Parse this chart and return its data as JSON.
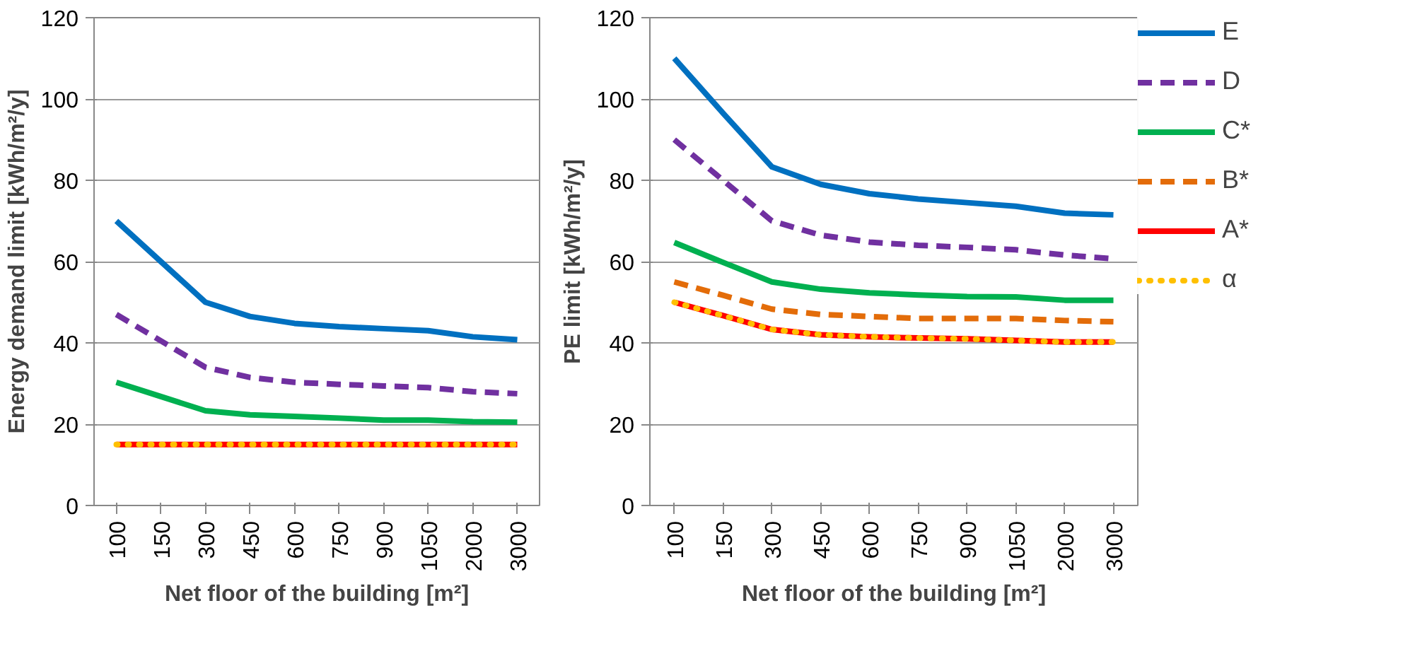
{
  "chart_data": [
    {
      "type": "line",
      "xlabel": "Net floor of the building [m²]",
      "ylabel": "Energy demand limit [kWh/m²/y]",
      "categories": [
        "100",
        "150",
        "300",
        "450",
        "600",
        "750",
        "900",
        "1050",
        "2000",
        "3000"
      ],
      "ylim": [
        0,
        120
      ],
      "yticks": [
        0,
        20,
        40,
        60,
        80,
        100,
        120
      ],
      "grid": "y",
      "legend": false,
      "series": [
        {
          "color": "#0070c0",
          "line_style": "solid",
          "values": [
            70,
            60,
            50,
            46.5,
            44.8,
            44,
            43.5,
            43,
            41.5,
            40.8
          ]
        },
        {
          "color": "#7030a0",
          "line_style": "dashed",
          "values": [
            47,
            40.5,
            34,
            31.5,
            30.3,
            29.8,
            29.4,
            29,
            28,
            27.5
          ]
        },
        {
          "color": "#00b050",
          "line_style": "solid",
          "values": [
            30.3,
            26.8,
            23.3,
            22.3,
            21.9,
            21.5,
            21,
            21,
            20.6,
            20.5
          ]
        },
        {
          "color": "#e36c09",
          "line_style": "dashed",
          "values": [
            null,
            null,
            null,
            null,
            null,
            null,
            null,
            null,
            null,
            null
          ]
        },
        {
          "color": "#ff0000",
          "line_style": "solid",
          "values": [
            15,
            15,
            15,
            15,
            15,
            15,
            15,
            15,
            15,
            15
          ]
        },
        {
          "color": "#ffc000",
          "line_style": "dotted",
          "values": [
            15,
            15,
            15,
            15,
            15,
            15,
            15,
            15,
            15,
            15
          ]
        }
      ]
    },
    {
      "type": "line",
      "xlabel": "Net floor of the building [m²]",
      "ylabel": "PE limit [kWh/m²/y]",
      "categories": [
        "100",
        "150",
        "300",
        "450",
        "600",
        "750",
        "900",
        "1050",
        "2000",
        "3000"
      ],
      "ylim": [
        0,
        120
      ],
      "yticks": [
        0,
        20,
        40,
        60,
        80,
        100,
        120
      ],
      "grid": "y",
      "legend": "right",
      "series": [
        {
          "name": "E",
          "color": "#0070c0",
          "line_style": "solid",
          "values": [
            110,
            96.5,
            83.3,
            79,
            76.7,
            75.4,
            74.5,
            73.6,
            71.9,
            71.5
          ]
        },
        {
          "name": "D",
          "color": "#7030a0",
          "line_style": "dashed",
          "values": [
            90,
            80,
            70,
            66.5,
            64.8,
            64,
            63.5,
            62.9,
            61.6,
            60.7
          ]
        },
        {
          "name": "C*",
          "color": "#00b050",
          "line_style": "solid",
          "values": [
            64.7,
            59.8,
            55,
            53.2,
            52.3,
            51.8,
            51.4,
            51.3,
            50.5,
            50.5
          ]
        },
        {
          "name": "B*",
          "color": "#e36c09",
          "line_style": "dashed",
          "values": [
            55,
            51.7,
            48.3,
            47,
            46.5,
            46,
            46,
            46,
            45.5,
            45.2
          ]
        },
        {
          "name": "A*",
          "color": "#ff0000",
          "line_style": "solid",
          "values": [
            50,
            46.7,
            43.3,
            42,
            41.5,
            41.2,
            41,
            40.6,
            40.2,
            40.2
          ]
        },
        {
          "name": "α",
          "color": "#ffc000",
          "line_style": "dotted",
          "values": [
            50,
            46.7,
            43.3,
            42,
            41.5,
            41.2,
            41,
            40.6,
            40.2,
            40.2
          ]
        }
      ]
    }
  ]
}
